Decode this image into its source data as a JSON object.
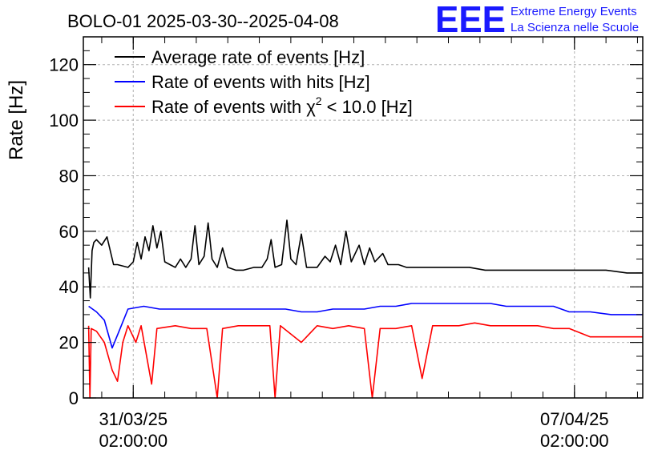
{
  "header": {
    "title": "BOLO-01 2025-03-30--2025-04-08",
    "logo_text": "EEE",
    "logo_line1": "Extreme Energy Events",
    "logo_line2": "La Scienza nelle Scuole"
  },
  "colors": {
    "average": "#000000",
    "hits": "#0000ff",
    "chi2": "#ff0000",
    "logo": "#1a1aff"
  },
  "chart_data": {
    "type": "line",
    "title": "BOLO-01 2025-03-30--2025-04-08",
    "ylabel": "Rate [Hz]",
    "xlabel": "",
    "ylim": [
      0,
      130
    ],
    "y_ticks": [
      "0",
      "20",
      "40",
      "60",
      "80",
      "100",
      "120"
    ],
    "xlim": [
      "2025-03-30T07:00",
      "2025-04-08T04:00"
    ],
    "x_ticks": [
      {
        "date": "31/03/25",
        "time": "02:00:00",
        "t": "2025-03-31T02:00"
      },
      {
        "date": "07/04/25",
        "time": "02:00:00",
        "t": "2025-04-07T02:00"
      }
    ],
    "grid": true,
    "legend_position": "top-left",
    "legend": [
      {
        "text": "Average rate of events [Hz]",
        "color": "#000000"
      },
      {
        "text": "Rate of events with hits [Hz]",
        "color": "#0000ff"
      },
      {
        "text_before": "Rate of events with χ",
        "sup": "2",
        "text_after": " < 10.0 [Hz]",
        "color": "#ff0000"
      }
    ],
    "series": [
      {
        "color": "#000000",
        "points": [
          [
            "2025-03-30T09:00",
            47
          ],
          [
            "2025-03-30T09:40",
            36
          ],
          [
            "2025-03-30T10:20",
            53
          ],
          [
            "2025-03-30T11:00",
            56
          ],
          [
            "2025-03-30T12:00",
            57
          ],
          [
            "2025-03-30T14:00",
            55
          ],
          [
            "2025-03-30T16:00",
            58
          ],
          [
            "2025-03-30T17:30",
            52
          ],
          [
            "2025-03-30T18:30",
            48
          ],
          [
            "2025-03-30T20:00",
            48
          ],
          [
            "2025-03-31T00:00",
            47
          ],
          [
            "2025-03-31T02:00",
            49
          ],
          [
            "2025-03-31T03:30",
            56
          ],
          [
            "2025-03-31T05:00",
            50
          ],
          [
            "2025-03-31T06:30",
            58
          ],
          [
            "2025-03-31T08:00",
            53
          ],
          [
            "2025-03-31T09:30",
            62
          ],
          [
            "2025-03-31T11:00",
            54
          ],
          [
            "2025-03-31T12:30",
            60
          ],
          [
            "2025-03-31T14:00",
            49
          ],
          [
            "2025-03-31T16:00",
            48
          ],
          [
            "2025-03-31T18:00",
            47
          ],
          [
            "2025-03-31T20:00",
            50
          ],
          [
            "2025-03-31T22:00",
            47
          ],
          [
            "2025-04-01T00:00",
            50
          ],
          [
            "2025-04-01T01:30",
            62
          ],
          [
            "2025-04-01T03:00",
            48
          ],
          [
            "2025-04-01T05:00",
            51
          ],
          [
            "2025-04-01T06:30",
            63
          ],
          [
            "2025-04-01T08:00",
            50
          ],
          [
            "2025-04-01T10:00",
            47
          ],
          [
            "2025-04-01T12:00",
            54
          ],
          [
            "2025-04-01T14:00",
            47
          ],
          [
            "2025-04-01T17:00",
            46
          ],
          [
            "2025-04-01T20:00",
            46
          ],
          [
            "2025-04-02T00:00",
            47
          ],
          [
            "2025-04-02T03:00",
            47
          ],
          [
            "2025-04-02T05:00",
            50
          ],
          [
            "2025-04-02T06:30",
            57
          ],
          [
            "2025-04-02T08:00",
            47
          ],
          [
            "2025-04-02T10:30",
            48
          ],
          [
            "2025-04-02T12:30",
            64
          ],
          [
            "2025-04-02T14:00",
            50
          ],
          [
            "2025-04-02T16:00",
            48
          ],
          [
            "2025-04-02T18:00",
            59
          ],
          [
            "2025-04-02T20:00",
            47
          ],
          [
            "2025-04-03T00:00",
            47
          ],
          [
            "2025-04-03T03:00",
            51
          ],
          [
            "2025-04-03T05:00",
            49
          ],
          [
            "2025-04-03T07:00",
            55
          ],
          [
            "2025-04-03T09:00",
            48
          ],
          [
            "2025-04-03T11:00",
            60
          ],
          [
            "2025-04-03T13:00",
            49
          ],
          [
            "2025-04-03T16:00",
            55
          ],
          [
            "2025-04-03T18:00",
            48
          ],
          [
            "2025-04-03T20:00",
            54
          ],
          [
            "2025-04-03T22:00",
            49
          ],
          [
            "2025-04-04T01:00",
            52
          ],
          [
            "2025-04-04T03:00",
            48
          ],
          [
            "2025-04-04T05:00",
            48
          ],
          [
            "2025-04-04T07:00",
            48
          ],
          [
            "2025-04-04T10:00",
            47
          ],
          [
            "2025-04-04T14:00",
            47
          ],
          [
            "2025-04-04T18:00",
            47
          ],
          [
            "2025-04-04T22:00",
            47
          ],
          [
            "2025-04-05T04:00",
            47
          ],
          [
            "2025-04-05T10:00",
            47
          ],
          [
            "2025-04-05T16:00",
            46
          ],
          [
            "2025-04-05T22:00",
            46
          ],
          [
            "2025-04-06T06:00",
            46
          ],
          [
            "2025-04-06T14:00",
            46
          ],
          [
            "2025-04-06T22:00",
            46
          ],
          [
            "2025-04-07T06:00",
            46
          ],
          [
            "2025-04-07T14:00",
            46
          ],
          [
            "2025-04-07T22:00",
            45
          ],
          [
            "2025-04-08T04:00",
            45
          ]
        ]
      },
      {
        "color": "#0000ff",
        "points": [
          [
            "2025-03-30T09:00",
            33
          ],
          [
            "2025-03-30T12:00",
            31
          ],
          [
            "2025-03-30T15:00",
            28
          ],
          [
            "2025-03-30T18:00",
            18
          ],
          [
            "2025-03-30T21:00",
            25
          ],
          [
            "2025-03-31T00:00",
            32
          ],
          [
            "2025-03-31T06:00",
            33
          ],
          [
            "2025-03-31T12:00",
            32
          ],
          [
            "2025-03-31T18:00",
            32
          ],
          [
            "2025-04-01T00:00",
            32
          ],
          [
            "2025-04-01T06:00",
            32
          ],
          [
            "2025-04-01T12:00",
            32
          ],
          [
            "2025-04-01T18:00",
            32
          ],
          [
            "2025-04-02T00:00",
            32
          ],
          [
            "2025-04-02T06:00",
            32
          ],
          [
            "2025-04-02T12:00",
            32
          ],
          [
            "2025-04-02T18:00",
            31
          ],
          [
            "2025-04-03T00:00",
            31
          ],
          [
            "2025-04-03T06:00",
            32
          ],
          [
            "2025-04-03T12:00",
            32
          ],
          [
            "2025-04-03T18:00",
            32
          ],
          [
            "2025-04-04T00:00",
            33
          ],
          [
            "2025-04-04T06:00",
            33
          ],
          [
            "2025-04-04T12:00",
            34
          ],
          [
            "2025-04-04T18:00",
            34
          ],
          [
            "2025-04-05T00:00",
            34
          ],
          [
            "2025-04-05T06:00",
            34
          ],
          [
            "2025-04-05T12:00",
            34
          ],
          [
            "2025-04-05T18:00",
            34
          ],
          [
            "2025-04-06T00:00",
            33
          ],
          [
            "2025-04-06T06:00",
            33
          ],
          [
            "2025-04-06T12:00",
            33
          ],
          [
            "2025-04-06T18:00",
            33
          ],
          [
            "2025-04-07T00:00",
            31
          ],
          [
            "2025-04-07T08:00",
            31
          ],
          [
            "2025-04-07T16:00",
            30
          ],
          [
            "2025-04-08T00:00",
            30
          ],
          [
            "2025-04-08T04:00",
            30
          ]
        ]
      },
      {
        "color": "#ff0000",
        "points": [
          [
            "2025-03-30T09:00",
            26
          ],
          [
            "2025-03-30T09:30",
            0
          ],
          [
            "2025-03-30T10:00",
            25
          ],
          [
            "2025-03-30T12:00",
            24
          ],
          [
            "2025-03-30T15:00",
            20
          ],
          [
            "2025-03-30T18:00",
            10
          ],
          [
            "2025-03-30T20:00",
            6
          ],
          [
            "2025-03-30T22:00",
            20
          ],
          [
            "2025-03-31T00:00",
            26
          ],
          [
            "2025-03-31T03:00",
            20
          ],
          [
            "2025-03-31T05:00",
            26
          ],
          [
            "2025-03-31T09:00",
            5
          ],
          [
            "2025-03-31T11:00",
            25
          ],
          [
            "2025-03-31T18:00",
            26
          ],
          [
            "2025-04-01T00:00",
            25
          ],
          [
            "2025-04-01T06:00",
            25
          ],
          [
            "2025-04-01T10:00",
            0
          ],
          [
            "2025-04-01T12:00",
            25
          ],
          [
            "2025-04-01T18:00",
            26
          ],
          [
            "2025-04-02T00:00",
            26
          ],
          [
            "2025-04-02T06:00",
            26
          ],
          [
            "2025-04-02T08:00",
            0
          ],
          [
            "2025-04-02T10:00",
            26
          ],
          [
            "2025-04-02T18:00",
            20
          ],
          [
            "2025-04-03T00:00",
            26
          ],
          [
            "2025-04-03T06:00",
            25
          ],
          [
            "2025-04-03T12:00",
            26
          ],
          [
            "2025-04-03T18:00",
            25
          ],
          [
            "2025-04-03T21:00",
            0
          ],
          [
            "2025-04-04T00:00",
            25
          ],
          [
            "2025-04-04T06:00",
            25
          ],
          [
            "2025-04-04T12:00",
            26
          ],
          [
            "2025-04-04T16:00",
            7
          ],
          [
            "2025-04-04T20:00",
            26
          ],
          [
            "2025-04-05T00:00",
            26
          ],
          [
            "2025-04-05T06:00",
            26
          ],
          [
            "2025-04-05T12:00",
            27
          ],
          [
            "2025-04-05T18:00",
            26
          ],
          [
            "2025-04-06T00:00",
            26
          ],
          [
            "2025-04-06T06:00",
            26
          ],
          [
            "2025-04-06T12:00",
            26
          ],
          [
            "2025-04-06T18:00",
            25
          ],
          [
            "2025-04-07T00:00",
            25
          ],
          [
            "2025-04-07T08:00",
            22
          ],
          [
            "2025-04-07T16:00",
            22
          ],
          [
            "2025-04-08T00:00",
            22
          ],
          [
            "2025-04-08T04:00",
            22
          ]
        ]
      }
    ]
  }
}
